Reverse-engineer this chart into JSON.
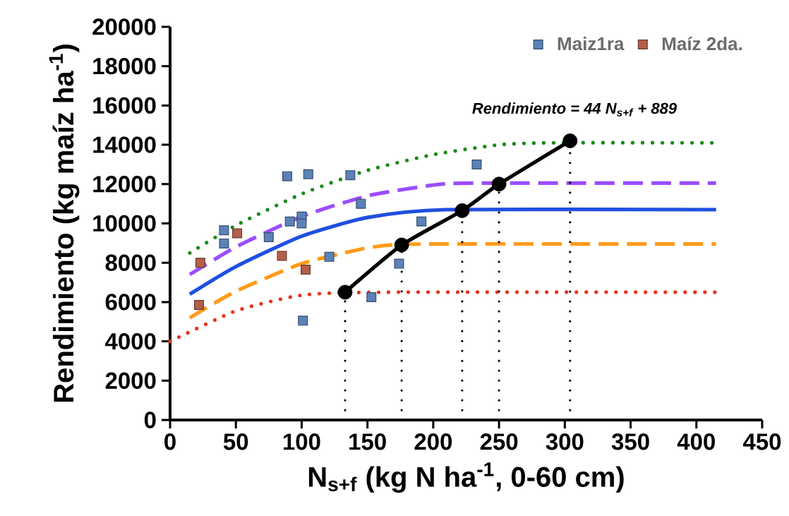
{
  "chart_data": {
    "type": "scatter",
    "xlabel": "N$_{s+f}$ (kg N ha$^{-1}$, 0-60 cm)",
    "ylabel": "Rendimiento (kg maíz ha$^{-1}$)",
    "annotations": [
      "Rendimiento = 44 N$_{s+f}$ + 889"
    ],
    "xlim": [
      0,
      450
    ],
    "xticks": [
      0,
      50,
      100,
      150,
      200,
      250,
      300,
      350,
      400,
      450
    ],
    "ylim": [
      0,
      20000
    ],
    "yticks": [
      0,
      2000,
      4000,
      6000,
      8000,
      10000,
      12000,
      14000,
      16000,
      18000,
      20000
    ],
    "grid": false,
    "legend": "top right",
    "series": [
      {
        "type": "line",
        "color": "#1a8a1a",
        "line_style": "dotted",
        "marker": "none",
        "x": [
          15,
          50,
          100,
          150,
          200,
          250,
          290,
          415
        ],
        "values": [
          8500,
          9900,
          11500,
          12700,
          13500,
          14000,
          14100,
          14100
        ]
      },
      {
        "type": "line",
        "color": "#9b4dff",
        "line_style": "dashed",
        "marker": "none",
        "x": [
          15,
          50,
          100,
          150,
          200,
          230,
          415
        ],
        "values": [
          7400,
          8800,
          10350,
          11400,
          11950,
          12050,
          12050
        ]
      },
      {
        "type": "line",
        "color": "#1f4fe0",
        "line_style": "solid",
        "marker": "none",
        "x": [
          15,
          50,
          100,
          150,
          210,
          415
        ],
        "values": [
          6400,
          7800,
          9350,
          10300,
          10700,
          10700
        ]
      },
      {
        "type": "line",
        "color": "#ff9a1a",
        "line_style": "dashed",
        "marker": "none",
        "x": [
          15,
          50,
          100,
          150,
          190,
          415
        ],
        "values": [
          5200,
          6550,
          7950,
          8750,
          8950,
          8950
        ]
      },
      {
        "type": "line",
        "color": "#e8321a",
        "line_style": "dotted",
        "marker": "none",
        "x": [
          0,
          50,
          100,
          160,
          415
        ],
        "values": [
          4000,
          5550,
          6350,
          6500,
          6500
        ]
      },
      {
        "type": "line",
        "color": "#000000",
        "line_style": "solid",
        "marker": "circle",
        "x": [
          133,
          176,
          222,
          250,
          304
        ],
        "values": [
          6500,
          8900,
          10650,
          12000,
          14200
        ]
      },
      {
        "type": "line",
        "color": "#000000",
        "line_style": "dotted",
        "x": [
          133,
          133
        ],
        "values": [
          0,
          6500
        ]
      },
      {
        "type": "line",
        "color": "#000000",
        "line_style": "dotted",
        "x": [
          176,
          176
        ],
        "values": [
          0,
          8900
        ]
      },
      {
        "type": "line",
        "color": "#000000",
        "line_style": "dotted",
        "x": [
          222,
          222
        ],
        "values": [
          0,
          10650
        ]
      },
      {
        "type": "line",
        "color": "#000000",
        "line_style": "dotted",
        "x": [
          250,
          250
        ],
        "values": [
          0,
          12000
        ]
      },
      {
        "type": "line",
        "color": "#000000",
        "line_style": "dotted",
        "x": [
          304,
          304
        ],
        "values": [
          0,
          14200
        ]
      },
      {
        "name": "Maiz1ra",
        "color": "#5b82b8",
        "marker": "square",
        "x": [
          41,
          41,
          89,
          105,
          137,
          145,
          75,
          91,
          100,
          100,
          121,
          153,
          101,
          233,
          191,
          174
        ],
        "values": [
          9650,
          8980,
          12400,
          12500,
          12450,
          11000,
          9300,
          10100,
          10350,
          10000,
          8300,
          6250,
          5050,
          13000,
          10100,
          7950
        ]
      },
      {
        "name": "Maíz 2da.",
        "color": "#b3604a",
        "marker": "square",
        "x": [
          51,
          23,
          85,
          103,
          22
        ],
        "values": [
          9500,
          8000,
          8350,
          7650,
          5850
        ]
      }
    ]
  }
}
